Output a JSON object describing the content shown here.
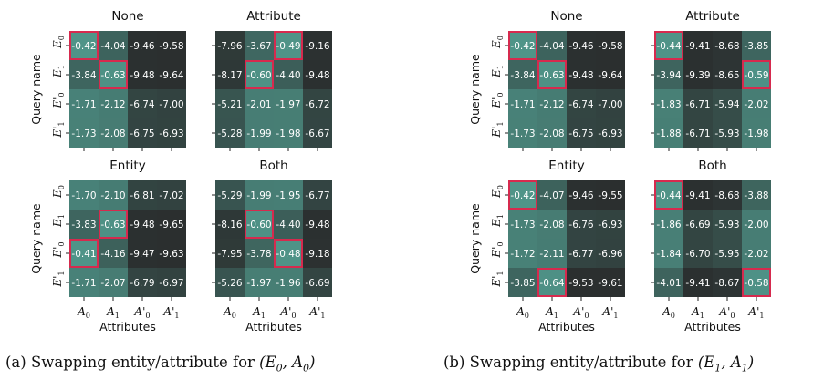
{
  "figure": {
    "row_labels": [
      "E_0",
      "E_1",
      "E'_0",
      "E'_1"
    ],
    "col_labels": [
      "A_0",
      "A_1",
      "A'_0",
      "A'_1"
    ],
    "ylabel": "Query name",
    "xlabel": "Attributes",
    "colors": {
      "low": "#2b2f2f",
      "high": "#4f9488",
      "highlight": "#d62a4e"
    }
  },
  "captions": {
    "a_prefix": "(a) Swapping entity/attribute for ",
    "a_math": "(E",
    "a_sub1": "0",
    "a_mid": ", A",
    "a_sub2": "0",
    "a_end": ")",
    "b_prefix": "(b) Swapping entity/attribute for ",
    "b_math": "(E",
    "b_sub1": "1",
    "b_mid": ", A",
    "b_sub2": "1",
    "b_end": ")"
  },
  "chart_data": [
    {
      "type": "heatmap",
      "panel": "a",
      "title": "None",
      "values": [
        [
          -0.42,
          -4.04,
          -9.46,
          -9.58
        ],
        [
          -3.84,
          -0.63,
          -9.48,
          -9.64
        ],
        [
          -1.71,
          -2.12,
          -6.74,
          -7.0
        ],
        [
          -1.73,
          -2.08,
          -6.75,
          -6.93
        ]
      ],
      "highlight": [
        [
          0,
          0
        ],
        [
          1,
          1
        ]
      ]
    },
    {
      "type": "heatmap",
      "panel": "a",
      "title": "Attribute",
      "values": [
        [
          -7.96,
          -3.67,
          -0.49,
          -9.16
        ],
        [
          -8.17,
          -0.6,
          -4.4,
          -9.48
        ],
        [
          -5.21,
          -2.01,
          -1.97,
          -6.72
        ],
        [
          -5.28,
          -1.99,
          -1.98,
          -6.67
        ]
      ],
      "highlight": [
        [
          0,
          2
        ],
        [
          1,
          1
        ]
      ]
    },
    {
      "type": "heatmap",
      "panel": "a",
      "title": "Entity",
      "values": [
        [
          -1.7,
          -2.1,
          -6.81,
          -7.02
        ],
        [
          -3.83,
          -0.63,
          -9.48,
          -9.65
        ],
        [
          -0.41,
          -4.16,
          -9.47,
          -9.63
        ],
        [
          -1.71,
          -2.07,
          -6.79,
          -6.97
        ]
      ],
      "highlight": [
        [
          1,
          1
        ],
        [
          2,
          0
        ]
      ]
    },
    {
      "type": "heatmap",
      "panel": "a",
      "title": "Both",
      "values": [
        [
          -5.29,
          -1.99,
          -1.95,
          -6.77
        ],
        [
          -8.16,
          -0.6,
          -4.4,
          -9.48
        ],
        [
          -7.95,
          -3.78,
          -0.48,
          -9.18
        ],
        [
          -5.26,
          -1.97,
          -1.96,
          -6.69
        ]
      ],
      "highlight": [
        [
          1,
          1
        ],
        [
          2,
          2
        ]
      ]
    },
    {
      "type": "heatmap",
      "panel": "b",
      "title": "None",
      "values": [
        [
          -0.42,
          -4.04,
          -9.46,
          -9.58
        ],
        [
          -3.84,
          -0.63,
          -9.48,
          -9.64
        ],
        [
          -1.71,
          -2.12,
          -6.74,
          -7.0
        ],
        [
          -1.73,
          -2.08,
          -6.75,
          -6.93
        ]
      ],
      "highlight": [
        [
          0,
          0
        ],
        [
          1,
          1
        ]
      ]
    },
    {
      "type": "heatmap",
      "panel": "b",
      "title": "Attribute",
      "values": [
        [
          -0.44,
          -9.41,
          -8.68,
          -3.85
        ],
        [
          -3.94,
          -9.39,
          -8.65,
          -0.59
        ],
        [
          -1.83,
          -6.71,
          -5.94,
          -2.02
        ],
        [
          -1.88,
          -6.71,
          -5.93,
          -1.98
        ]
      ],
      "highlight": [
        [
          0,
          0
        ],
        [
          1,
          3
        ]
      ]
    },
    {
      "type": "heatmap",
      "panel": "b",
      "title": "Entity",
      "values": [
        [
          -0.42,
          -4.07,
          -9.46,
          -9.55
        ],
        [
          -1.73,
          -2.08,
          -6.76,
          -6.93
        ],
        [
          -1.72,
          -2.11,
          -6.77,
          -6.96
        ],
        [
          -3.85,
          -0.64,
          -9.53,
          -9.61
        ]
      ],
      "highlight": [
        [
          0,
          0
        ],
        [
          3,
          1
        ]
      ]
    },
    {
      "type": "heatmap",
      "panel": "b",
      "title": "Both",
      "values": [
        [
          -0.44,
          -9.41,
          -8.68,
          -3.88
        ],
        [
          -1.86,
          -6.69,
          -5.93,
          -2.0
        ],
        [
          -1.84,
          -6.7,
          -5.95,
          -2.02
        ],
        [
          -4.01,
          -9.41,
          -8.67,
          -0.58
        ]
      ],
      "highlight": [
        [
          0,
          0
        ],
        [
          3,
          3
        ]
      ]
    }
  ]
}
